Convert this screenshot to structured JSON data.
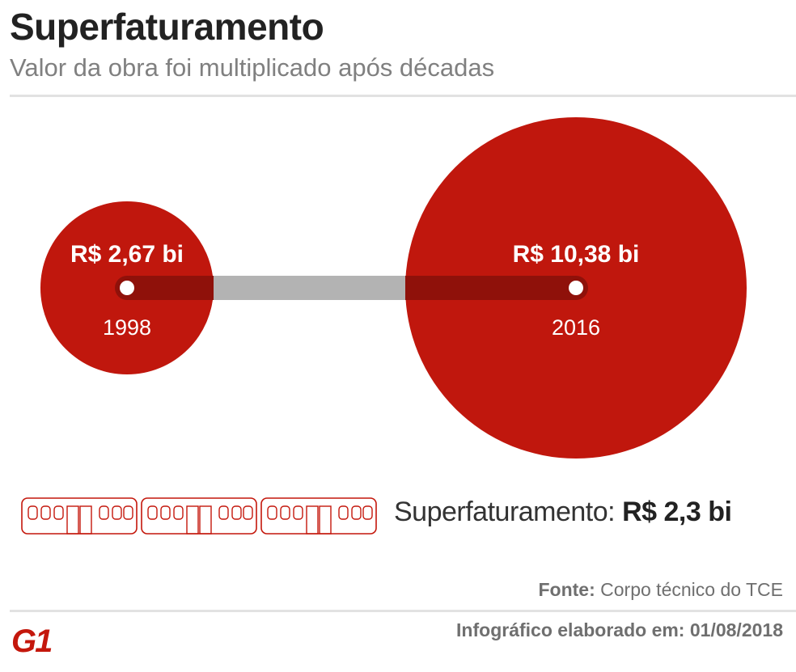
{
  "header": {
    "title": "Superfaturamento",
    "subtitle": "Valor da obra foi multiplicado após décadas"
  },
  "chart_data": {
    "type": "bubble",
    "series": [
      {
        "x": "1998",
        "value": 2.67,
        "label": "R$ 2,67 bi",
        "year_label": "1998"
      },
      {
        "x": "2016",
        "value": 10.38,
        "label": "R$ 10,38 bi",
        "year_label": "2016"
      }
    ],
    "colors": {
      "bubble": "#c0170d",
      "connector": "#b3b3b3",
      "connector_overlap": "#8f110a"
    }
  },
  "overbilling": {
    "label": "Superfaturamento:",
    "value": "R$ 2,3 bi",
    "train_cars": 3,
    "icon": "train-car-icon"
  },
  "footer": {
    "source_label": "Fonte:",
    "source_value": "Corpo técnico do TCE",
    "credit_label": "Infográfico elaborado em:",
    "credit_date": "01/08/2018",
    "logo_text": "G1"
  },
  "colors": {
    "brand": "#c4170c",
    "title": "#222222",
    "muted": "#808080"
  }
}
